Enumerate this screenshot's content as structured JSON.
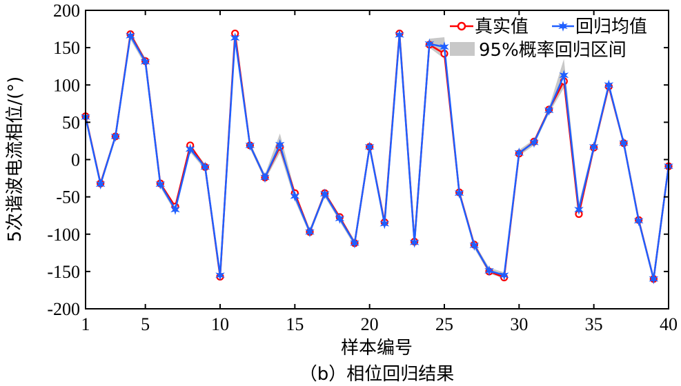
{
  "chart_data": {
    "type": "line",
    "xlabel": "样本编号",
    "ylabel": "5次谐波电流相位/(°)",
    "caption": "（b）相位回归结果",
    "xlim": [
      1,
      40
    ],
    "ylim": [
      -200,
      200
    ],
    "xticks": [
      1,
      5,
      10,
      15,
      20,
      25,
      30,
      35,
      40
    ],
    "yticks": [
      -200,
      -150,
      -100,
      -50,
      0,
      50,
      100,
      150,
      200
    ],
    "grid": false,
    "legend_position": "top-right",
    "x": [
      1,
      2,
      3,
      4,
      5,
      6,
      7,
      8,
      9,
      10,
      11,
      12,
      13,
      14,
      15,
      16,
      17,
      18,
      19,
      20,
      21,
      22,
      23,
      24,
      25,
      26,
      27,
      28,
      29,
      30,
      31,
      32,
      33,
      34,
      35,
      36,
      37,
      38,
      39,
      40
    ],
    "series": [
      {
        "name": "真实值",
        "color": "#ff0000",
        "marker": "circle",
        "values": [
          58,
          -32,
          31,
          168,
          132,
          -32,
          -63,
          19,
          -10,
          -157,
          169,
          19,
          -24,
          17,
          -45,
          -97,
          -45,
          -77,
          -112,
          17,
          -84,
          169,
          -110,
          154,
          142,
          -44,
          -114,
          -150,
          -158,
          8,
          24,
          67,
          105,
          -73,
          16,
          98,
          22,
          -81,
          -160,
          -9
        ]
      },
      {
        "name": "回归均值",
        "color": "#1f5fff",
        "marker": "star",
        "values": [
          57,
          -33,
          31,
          166,
          131,
          -33,
          -67,
          14,
          -10,
          -155,
          163,
          19,
          -24,
          20,
          -49,
          -97,
          -46,
          -79,
          -112,
          17,
          -86,
          167,
          -111,
          155,
          151,
          -45,
          -115,
          -149,
          -155,
          9,
          23,
          66,
          113,
          -67,
          17,
          100,
          22,
          -82,
          -160,
          -9
        ]
      }
    ],
    "interval": {
      "name": "95%概率回归区间",
      "color": "#c8c8c8",
      "lower": [
        53,
        -37,
        27,
        161,
        126,
        -37,
        -71,
        10,
        -14,
        -160,
        158,
        15,
        -28,
        9,
        -55,
        -101,
        -50,
        -83,
        -116,
        13,
        -90,
        162,
        -115,
        150,
        135,
        -49,
        -119,
        -153,
        -159,
        5,
        19,
        62,
        96,
        -76,
        12,
        95,
        18,
        -86,
        -164,
        -13
      ],
      "upper": [
        61,
        -29,
        35,
        171,
        136,
        -29,
        -62,
        19,
        -6,
        -150,
        168,
        23,
        -20,
        35,
        -42,
        -93,
        -42,
        -75,
        -108,
        21,
        -82,
        171,
        -107,
        162,
        164,
        -41,
        -111,
        -145,
        -151,
        13,
        27,
        70,
        135,
        -58,
        21,
        104,
        26,
        -78,
        -156,
        -5
      ]
    }
  }
}
